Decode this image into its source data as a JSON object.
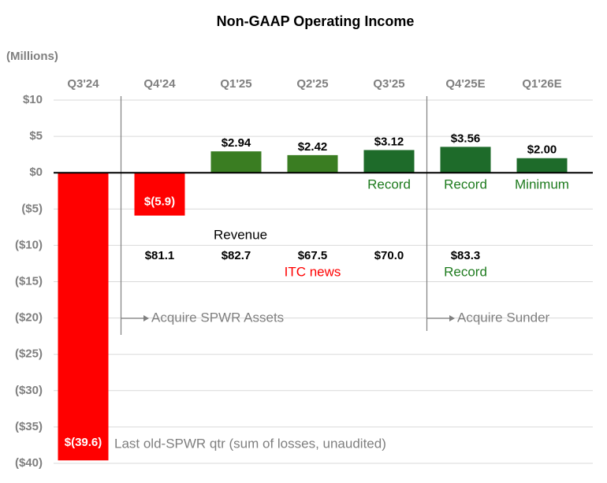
{
  "chart_data": {
    "type": "bar",
    "title": "Non-GAAP Operating Income",
    "y_label": "(Millions)",
    "categories": [
      "Q3'24",
      "Q4'24",
      "Q1'25",
      "Q2'25",
      "Q3'25",
      "Q4'25E",
      "Q1'26E"
    ],
    "values": [
      -39.6,
      -5.9,
      2.94,
      2.42,
      3.12,
      3.56,
      2.0
    ],
    "value_labels": [
      "$(39.6)",
      "$(5.9)",
      "$2.94",
      "$2.42",
      "$3.12",
      "$3.56",
      "$2.00"
    ],
    "colors": [
      "#ff0000",
      "#ff0000",
      "#3a7d22",
      "#3a7d22",
      "#1e6b2a",
      "#1e6b2a",
      "#1e6b2a"
    ],
    "ylim": [
      -40,
      10
    ],
    "yticks": [
      {
        "value": 10,
        "label": "$10"
      },
      {
        "value": 5,
        "label": "$5"
      },
      {
        "value": 0,
        "label": "$0"
      },
      {
        "value": -5,
        "label": "($5)"
      },
      {
        "value": -10,
        "label": "($10)"
      },
      {
        "value": -15,
        "label": "($15)"
      },
      {
        "value": -20,
        "label": "($20)"
      },
      {
        "value": -25,
        "label": "($25)"
      },
      {
        "value": -30,
        "label": "($30)"
      },
      {
        "value": -35,
        "label": "($35)"
      },
      {
        "value": -40,
        "label": "($40)"
      }
    ],
    "grid": true,
    "bar_notes": [
      null,
      null,
      null,
      null,
      "Record",
      "Record",
      "Minimum"
    ],
    "revenue": {
      "label": "Revenue",
      "values": [
        null,
        81.1,
        82.7,
        67.5,
        70.0,
        83.3,
        null
      ],
      "value_labels": [
        null,
        "$81.1",
        "$82.7",
        "$67.5",
        "$70.0",
        "$83.3",
        null
      ],
      "notes": [
        null,
        null,
        null,
        "ITC news",
        null,
        "Record",
        null
      ],
      "note_colors": [
        null,
        null,
        null,
        "#ff0000",
        null,
        "#1e7b1e",
        null
      ]
    },
    "events": [
      "Acquire SPWR Assets",
      "Acquire Sunder"
    ],
    "footnote": "Last old-SPWR qtr (sum of losses, unaudited)"
  }
}
